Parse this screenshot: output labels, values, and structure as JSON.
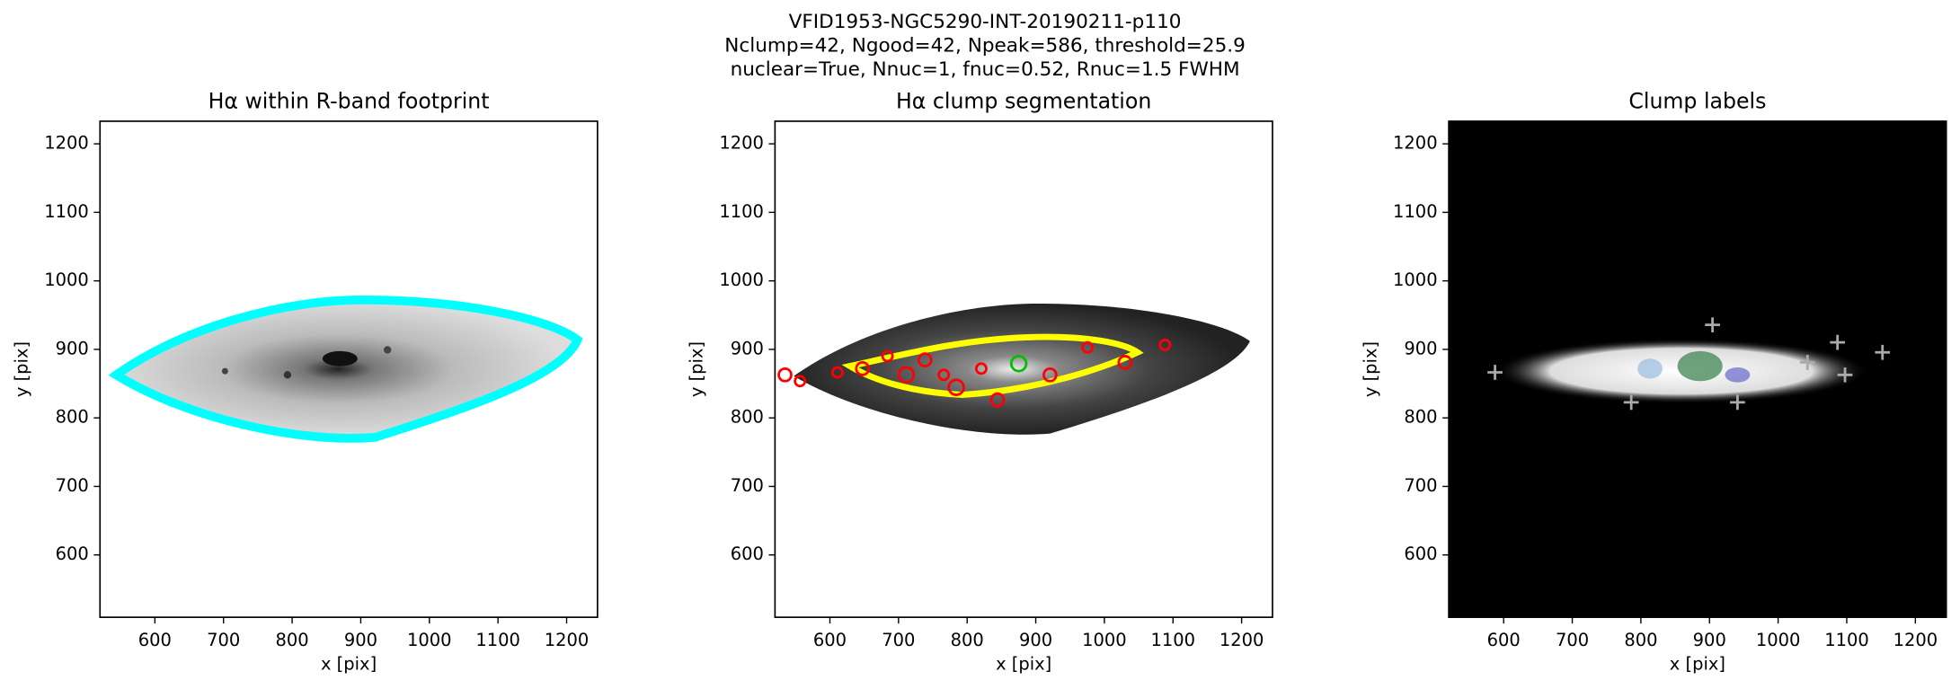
{
  "figure_title": [
    "VFID1953-NGC5290-INT-20190211-p110",
    "Nclump=42, Ngood=42, Npeak=586, threshold=25.9",
    "nuclear=True, Nnuc=1, fnuc=0.52, Rnuc=1.5 FWHM"
  ],
  "chart_data": [
    {
      "type": "image",
      "title": "Hα within R-band footprint",
      "xlabel": "x [pix]",
      "ylabel": "y [pix]",
      "xlim": [
        520,
        1245
      ],
      "ylim": [
        509,
        1233
      ],
      "xticks": [
        600,
        700,
        800,
        900,
        1000,
        1100,
        1200
      ],
      "yticks": [
        600,
        700,
        800,
        900,
        1000,
        1100,
        1200
      ]
    },
    {
      "type": "image",
      "title": "Hα clump segmentation",
      "xlabel": "x [pix]",
      "ylabel": "y [pix]",
      "xlim": [
        520,
        1245
      ],
      "ylim": [
        509,
        1233
      ],
      "xticks": [
        600,
        700,
        800,
        900,
        1000,
        1100,
        1200
      ],
      "yticks": [
        600,
        700,
        800,
        900,
        1000,
        1100,
        1200
      ]
    },
    {
      "type": "image",
      "title": "Clump labels",
      "xlabel": "x [pix]",
      "ylabel": "y [pix]",
      "xlim": [
        520,
        1245
      ],
      "ylim": [
        509,
        1233
      ],
      "xticks": [
        600,
        700,
        800,
        900,
        1000,
        1100,
        1200
      ],
      "yticks": [
        600,
        700,
        800,
        900,
        1000,
        1100,
        1200
      ]
    }
  ]
}
